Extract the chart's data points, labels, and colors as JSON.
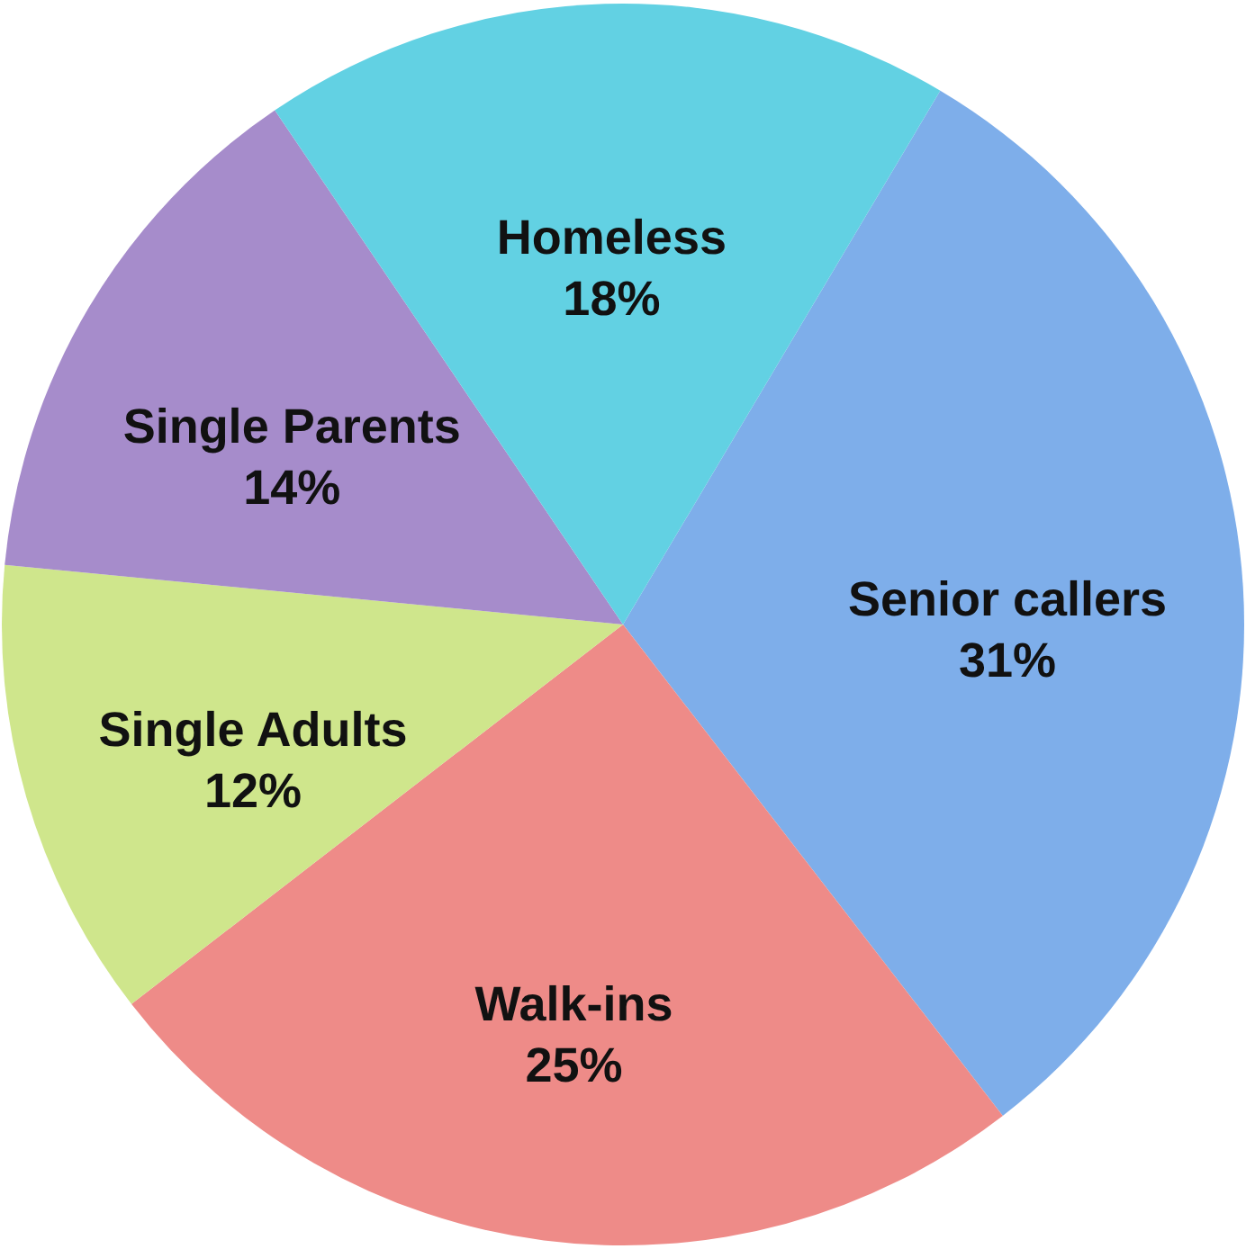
{
  "chart_data": {
    "type": "pie",
    "categories": [
      "Senior callers",
      "Walk-ins",
      "Single Adults",
      "Single Parents",
      "Homeless"
    ],
    "values": [
      31,
      25,
      12,
      14,
      18
    ],
    "value_labels": [
      "31%",
      "25%",
      "12%",
      "14%",
      "18%"
    ],
    "colors": [
      "#7eaeea",
      "#ee8b88",
      "#cfe68c",
      "#a68ccb",
      "#62d1e3"
    ]
  }
}
